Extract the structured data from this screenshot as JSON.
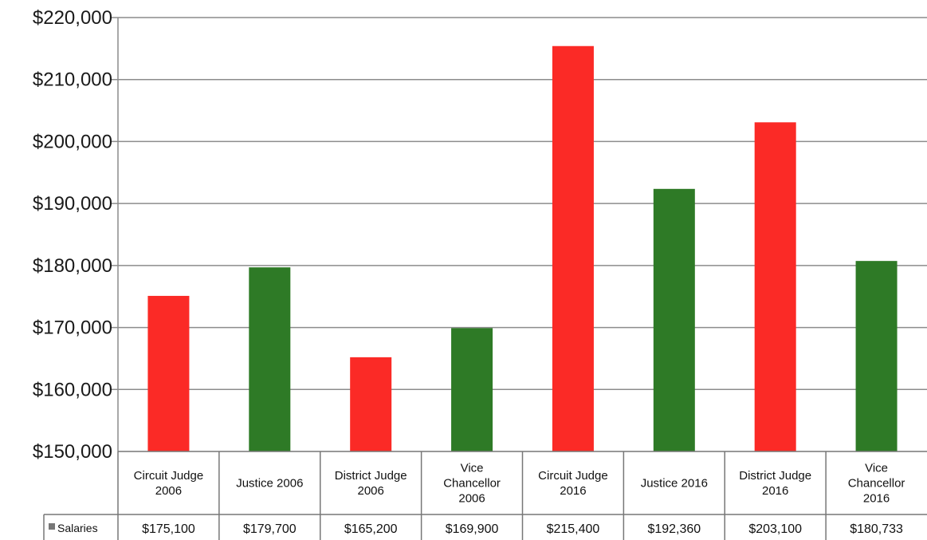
{
  "chart_data": {
    "type": "bar",
    "categories": [
      [
        "Circuit Judge",
        "2006"
      ],
      [
        "Justice  2006"
      ],
      [
        "District Judge",
        "2006"
      ],
      [
        "Vice",
        "Chancellor",
        "2006"
      ],
      [
        "Circuit Judge",
        "2016"
      ],
      [
        "Justice  2016"
      ],
      [
        "District Judge",
        "2016"
      ],
      [
        "Vice",
        "Chancellor",
        "2016"
      ]
    ],
    "series": [
      {
        "name": "Salaries",
        "values": [
          175100,
          179700,
          165200,
          169900,
          215400,
          192360,
          203100,
          180733
        ],
        "data_labels": [
          "$175,100",
          "$179,700",
          "$165,200",
          "$169,900",
          "$215,400",
          "$192,360",
          "$203,100",
          "$180,733"
        ]
      }
    ],
    "bar_colors": [
      "#fb2a26",
      "#2e7a26",
      "#fb2a26",
      "#2e7a26",
      "#fb2a26",
      "#2e7a26",
      "#fb2a26",
      "#2e7a26"
    ],
    "legend_marker_color": "#777777",
    "ylim": [
      150000,
      220000
    ],
    "yticks": [
      {
        "value": 220000,
        "label": "$220,000"
      },
      {
        "value": 210000,
        "label": "$210,000"
      },
      {
        "value": 200000,
        "label": "$200,000"
      },
      {
        "value": 190000,
        "label": "$190,000"
      },
      {
        "value": 180000,
        "label": "$180,000"
      },
      {
        "value": 170000,
        "label": "$170,000"
      },
      {
        "value": 160000,
        "label": "$160,000"
      },
      {
        "value": 150000,
        "label": "$150,000"
      }
    ],
    "grid": true,
    "data_table": true,
    "title": "",
    "xlabel": "",
    "ylabel": ""
  }
}
